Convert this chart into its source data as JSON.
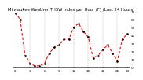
{
  "title": "Milwaukee Weather THSW Index per Hour (F) (Last 24 Hours)",
  "hours": [
    0,
    1,
    2,
    3,
    4,
    5,
    6,
    7,
    8,
    9,
    10,
    11,
    12,
    13,
    14,
    15,
    16,
    17,
    18,
    19,
    20,
    21,
    22,
    23
  ],
  "values": [
    68,
    60,
    15,
    5,
    2,
    2,
    5,
    18,
    25,
    28,
    35,
    35,
    50,
    55,
    45,
    38,
    12,
    15,
    22,
    28,
    18,
    8,
    35,
    42
  ],
  "line_color": "#ff0000",
  "marker_color": "#000000",
  "bg_color": "#ffffff",
  "grid_color": "#888888",
  "title_color": "#000000",
  "ylim": [
    0,
    70
  ],
  "yticks": [
    0,
    10,
    20,
    30,
    40,
    50,
    60,
    70
  ],
  "ytick_labels": [
    "0",
    "10",
    "20",
    "30",
    "40",
    "50",
    "60",
    "70"
  ],
  "title_fontsize": 3.8,
  "tick_fontsize": 3.0,
  "line_width": 0.8,
  "marker_size": 1.8
}
